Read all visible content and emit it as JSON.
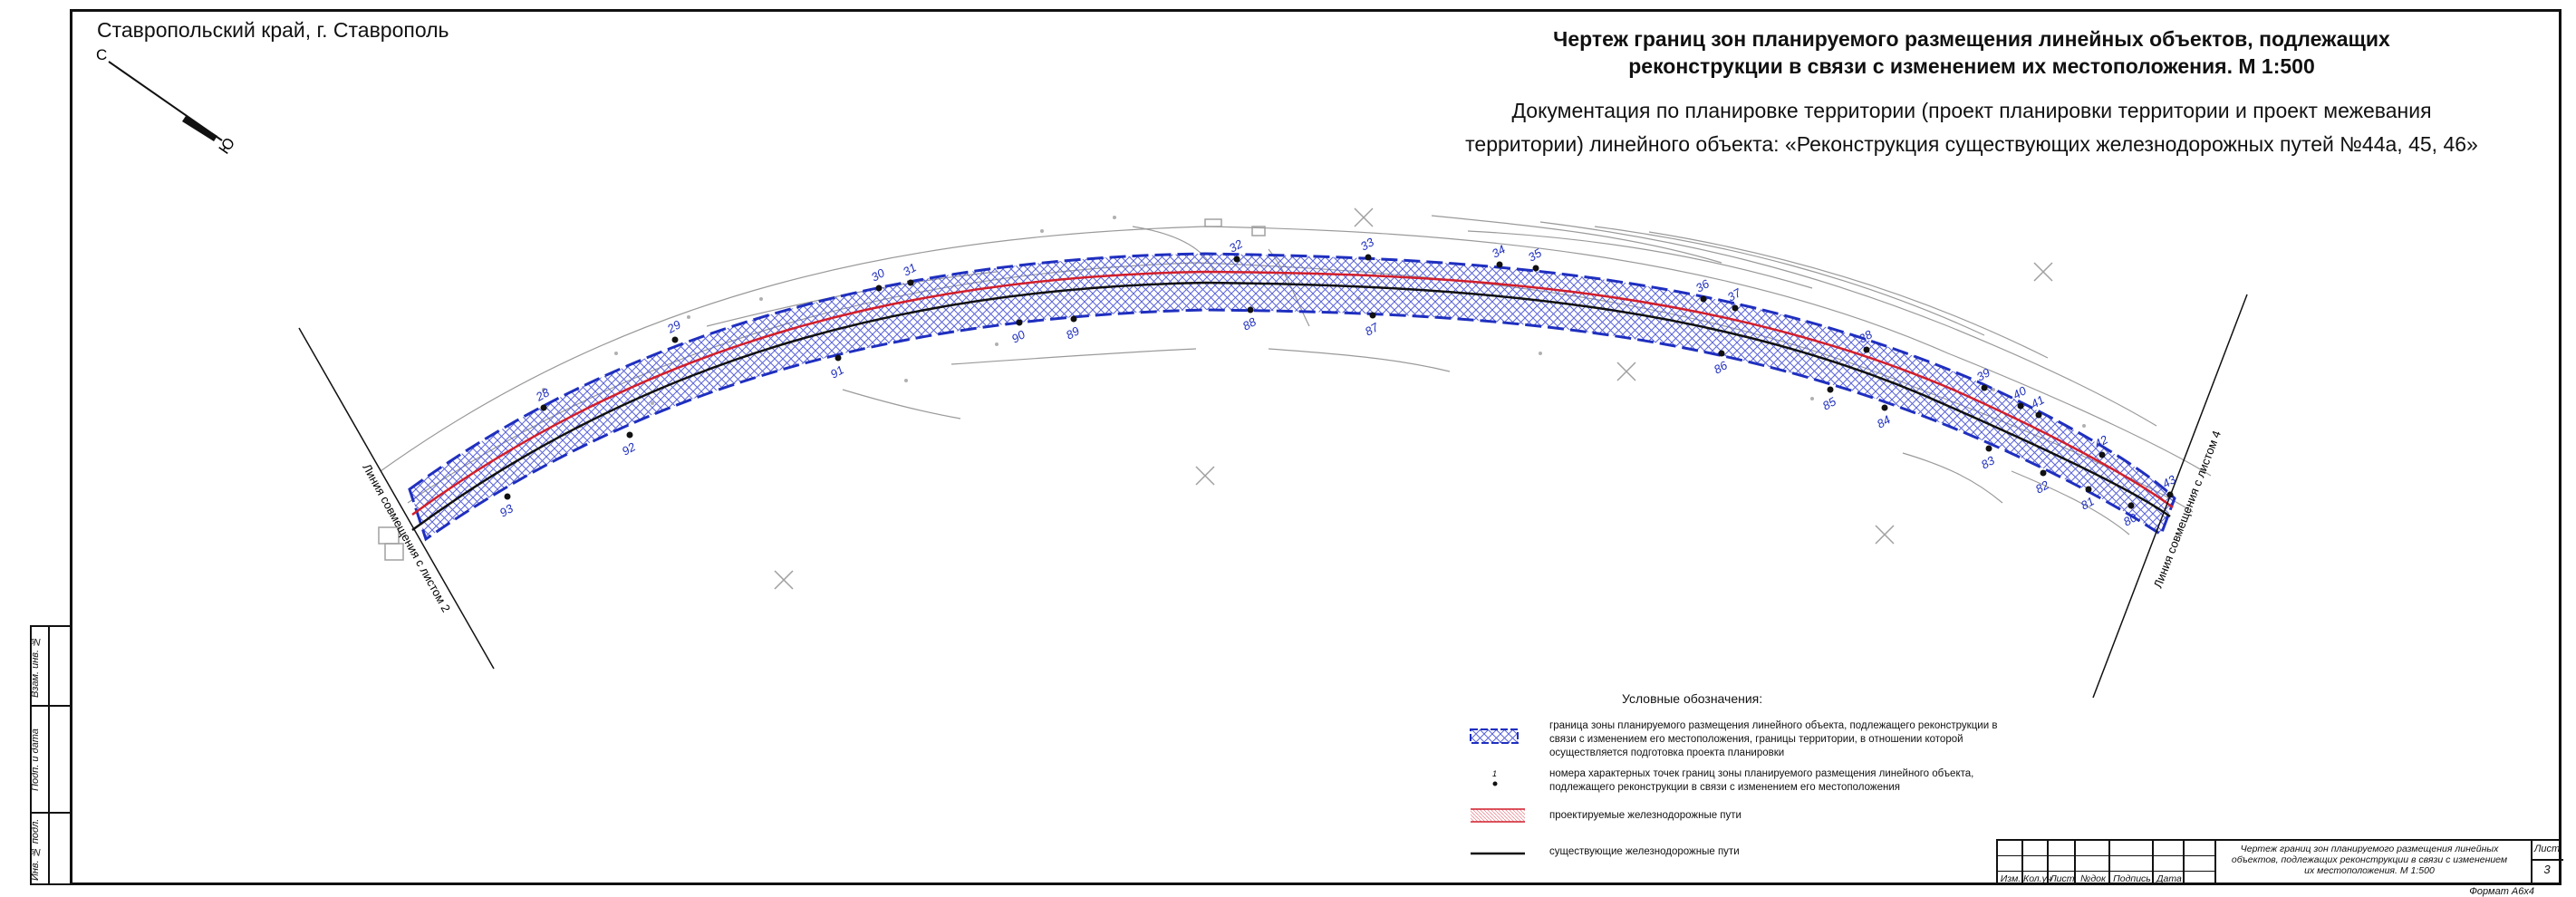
{
  "header": {
    "region": "Ставропольский край, г. Ставрополь",
    "title_line1": "Чертеж границ зон планируемого размещения линейных объектов, подлежащих",
    "title_line2": "реконструкции в связи с изменением их местоположения. М 1:500",
    "subtitle_line1": "Документация по планировке территории (проект планировки территории и проект межевания",
    "subtitle_line2": "территории) линейного объекта: «Реконструкция существующих железнодорожных путей №44а, 45, 46»"
  },
  "compass": {
    "north": "С",
    "south": "Ю"
  },
  "drawing": {
    "match_line_left": "Линия совмещения с листом 2",
    "match_line_right": "Линия совмещения с листом 4",
    "top_points": [
      "28",
      "29",
      "30",
      "31",
      "32",
      "33",
      "34",
      "35",
      "36",
      "37",
      "38",
      "39",
      "40",
      "41",
      "42",
      "43"
    ],
    "bottom_points": [
      "80",
      "81",
      "82",
      "83",
      "84",
      "85",
      "86",
      "87",
      "88",
      "89",
      "90",
      "91",
      "92",
      "93"
    ],
    "colors": {
      "zone_boundary": "#1f2fbf",
      "hatch": "#5a63d8",
      "projected_track": "#d21f2b",
      "existing_track": "#111111",
      "topo": "#9a9a9a"
    }
  },
  "legend": {
    "title": "Условные обозначения:",
    "items": [
      {
        "key": "zone",
        "text": "граница зоны планируемого размещения линейного объекта, подлежащего реконструкции в связи с изменением его местоположения, границы территории, в отношении которой осуществляется подготовка проекта планировки"
      },
      {
        "key": "points",
        "text": "номера характерных точек границ зоны планируемого размещения линейного объекта, подлежащего реконструкции в связи с изменением его местоположения",
        "sample_number": "1"
      },
      {
        "key": "projected",
        "text": "проектируемые железнодорожные пути"
      },
      {
        "key": "existing",
        "text": "существующие железнодорожные пути"
      }
    ]
  },
  "side_strip": {
    "labels": [
      "Взам. инв. №",
      "Подп. и дата",
      "Инв. № подл."
    ]
  },
  "stamp": {
    "columns": [
      "Изм.",
      "Кол.уч",
      "Лист",
      "№док",
      "Подпись",
      "Дата"
    ],
    "main_line1": "Чертеж границ зон планируемого размещения линейных",
    "main_line2": "объектов, подлежащих реконструкции в связи с изменением",
    "main_line3": "их местоположения. М 1:500",
    "sheet_label": "Лист",
    "sheet_number": "3"
  },
  "format_label": "Формат А6х4"
}
